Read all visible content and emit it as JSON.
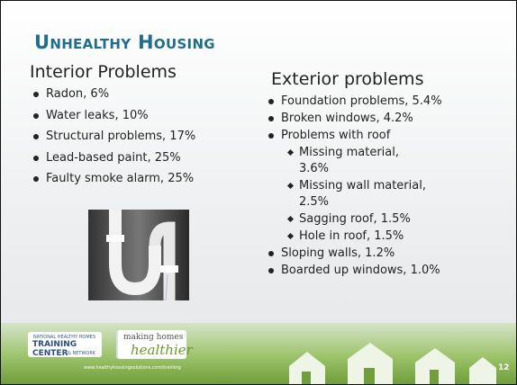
{
  "header": {
    "title": "Unhealthy Housing"
  },
  "columns": [
    {
      "heading": "Interior Problems",
      "items": [
        {
          "text": "Radon, 6%"
        },
        {
          "text": "Water leaks, 10%"
        },
        {
          "text": "Structural problems, 17%"
        },
        {
          "text": "Lead-based paint, 25%"
        },
        {
          "text": "Faulty smoke alarm, 25%"
        }
      ]
    },
    {
      "heading": "Exterior problems",
      "items": [
        {
          "text": "Foundation problems, 5.4%"
        },
        {
          "text": "Broken windows, 4.2%"
        },
        {
          "text": "Problems with roof",
          "subitems": [
            "Missing material, 3.6%",
            "Missing wall material, 2.5%",
            "Sagging roof, 1.5%",
            "Hole in roof, 1.5%"
          ]
        },
        {
          "text": "Sloping walls, 1.2%"
        },
        {
          "text": "Boarded up windows, 1.0%"
        }
      ]
    }
  ],
  "footer": {
    "logo": [
      "NATIONAL HEALTHY HOMES",
      "TRAINING CENTER",
      "& NETWORK"
    ],
    "tagline": [
      "making homes",
      "healthier"
    ],
    "url": "www.healthyhousingsolutions.com/training",
    "page": "12"
  }
}
